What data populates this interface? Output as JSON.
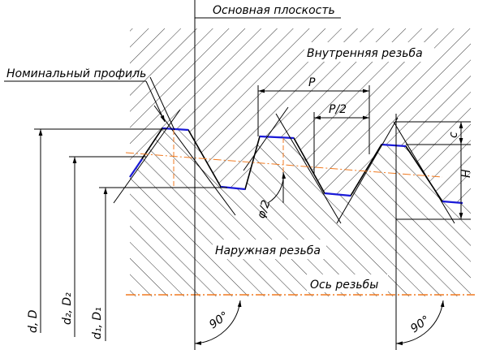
{
  "labels": {
    "base_plane": "Основная плоскость",
    "internal_thread": "Внутренняя резьба",
    "nominal_profile": "Номинальный профиль",
    "pitch": "P",
    "half_pitch": "P/2",
    "c": "c",
    "h": "H",
    "half_angle": "φ/2",
    "external_thread": "Наружная резьба",
    "axis": "Ось резьбы",
    "angle_left": "90°",
    "angle_right": "90°",
    "d": "d, D",
    "d2": "d₂, D₂",
    "d1": "d₁, D₁"
  }
}
